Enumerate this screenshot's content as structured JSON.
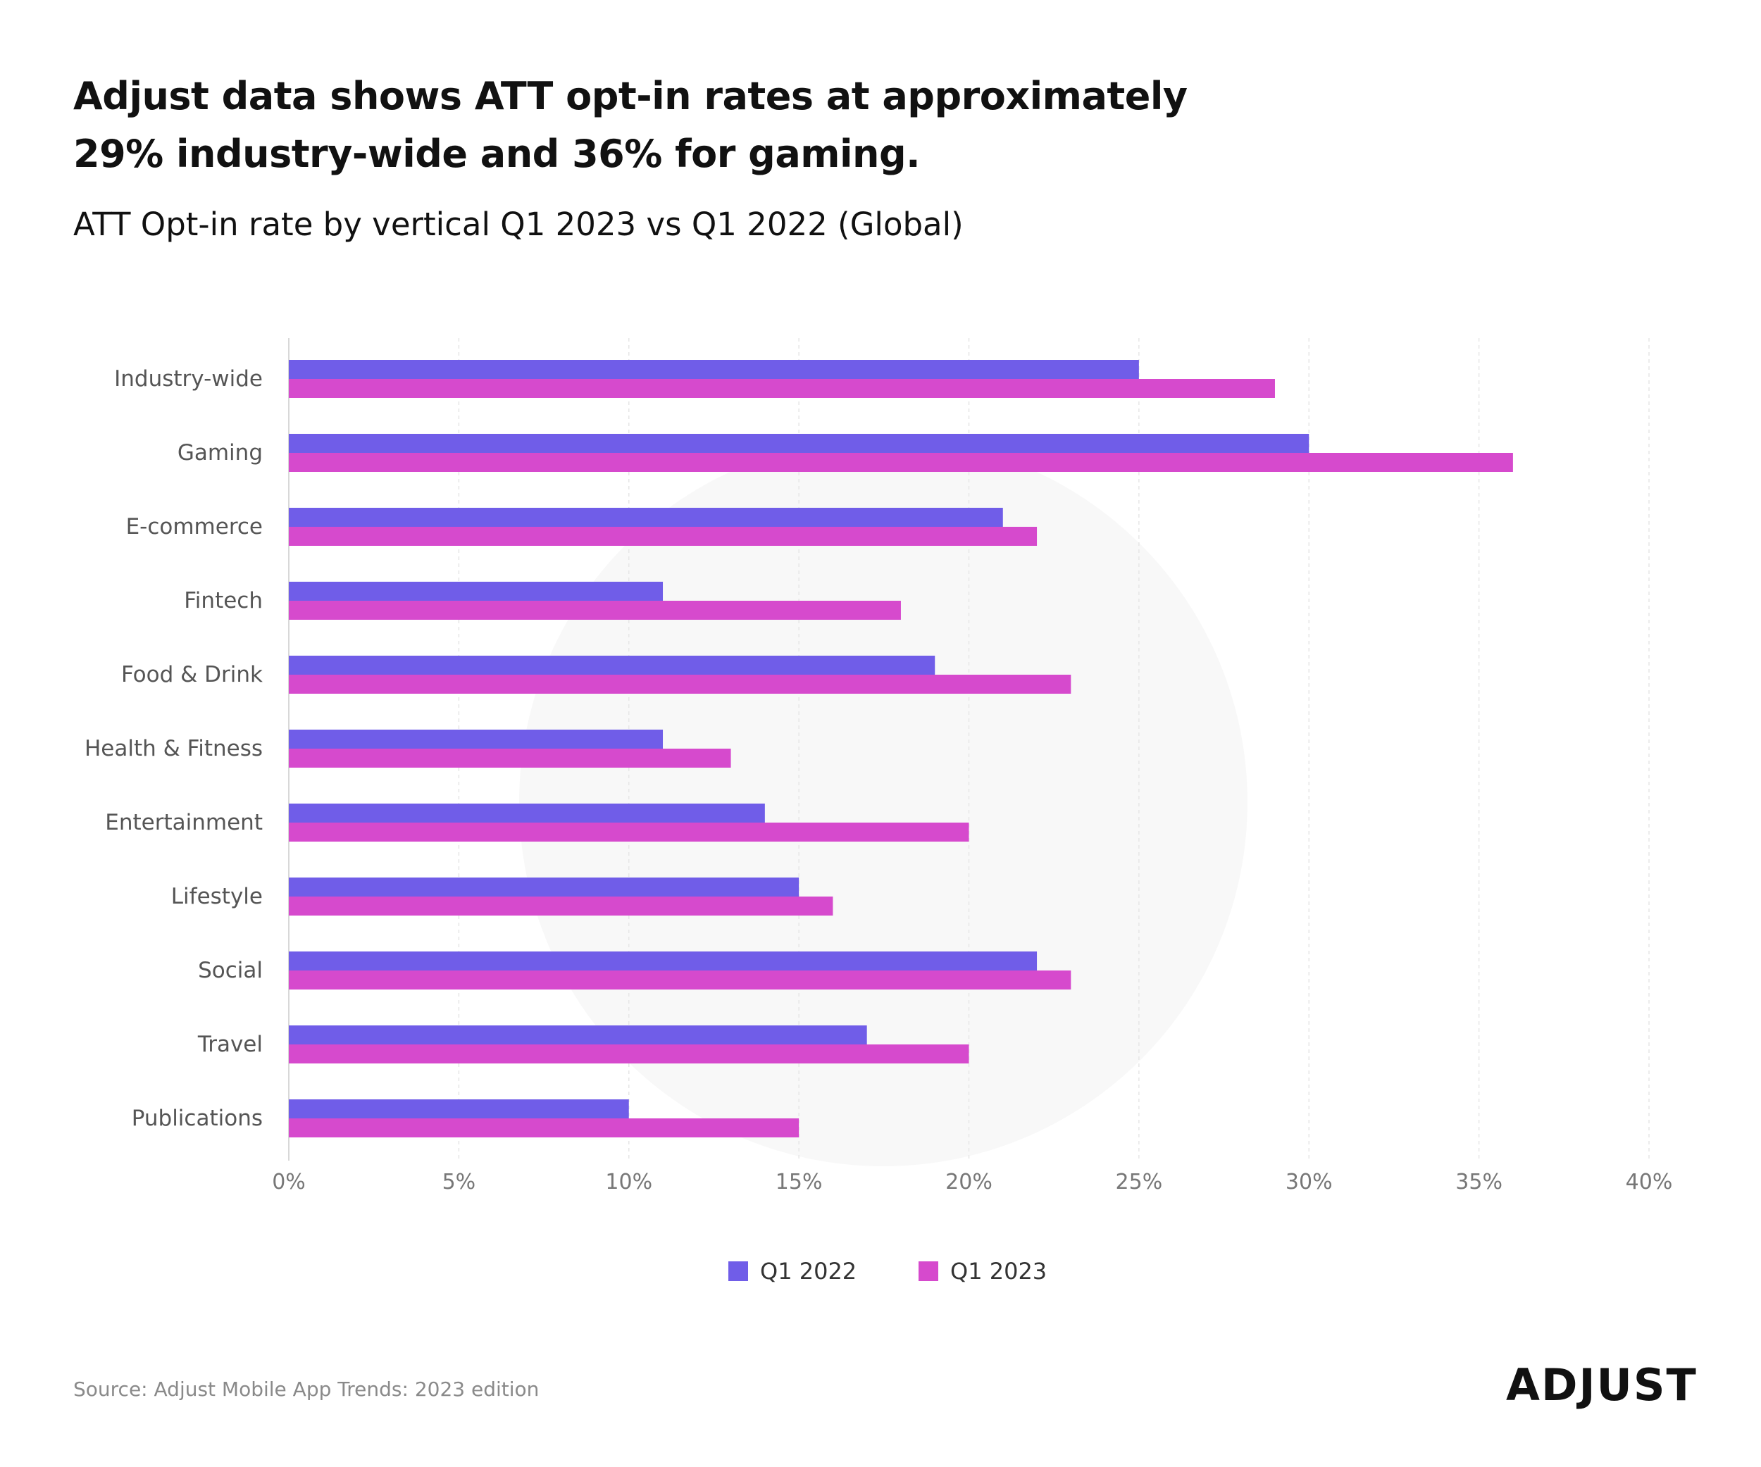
{
  "title": "Adjust data shows ATT opt-in rates at approximately 29% industry-wide and 36% for gaming.",
  "subtitle": "ATT Opt-in rate by vertical Q1 2023 vs Q1 2022 (Global)",
  "source": "Source: Adjust Mobile App Trends: 2023 edition",
  "logo_text": "ADJUST",
  "colors": {
    "q1_2022": "#705de8",
    "q1_2023": "#d64acd",
    "watermark": "#f8f8f8",
    "grid": "#e6e6e6"
  },
  "chart_data": {
    "type": "bar",
    "orientation": "horizontal",
    "title": "ATT Opt-in rate by vertical Q1 2023 vs Q1 2022 (Global)",
    "xlabel": "",
    "ylabel": "",
    "xlim": [
      0,
      40
    ],
    "x_ticks": [
      0,
      5,
      10,
      15,
      20,
      25,
      30,
      35,
      40
    ],
    "x_tick_labels": [
      "0%",
      "5%",
      "10%",
      "15%",
      "20%",
      "25%",
      "30%",
      "35%",
      "40%"
    ],
    "grid": "vertical dashed",
    "legend_position": "bottom-center",
    "categories": [
      "Industry-wide",
      "Gaming",
      "E-commerce",
      "Fintech",
      "Food & Drink",
      "Health & Fitness",
      "Entertainment",
      "Lifestyle",
      "Social",
      "Travel",
      "Publications"
    ],
    "series": [
      {
        "name": "Q1 2022",
        "values": [
          25,
          30,
          21,
          11,
          19,
          11,
          14,
          15,
          22,
          17,
          10
        ]
      },
      {
        "name": "Q1 2023",
        "values": [
          29,
          36,
          22,
          18,
          23,
          13,
          20,
          16,
          23,
          20,
          15
        ]
      }
    ]
  }
}
